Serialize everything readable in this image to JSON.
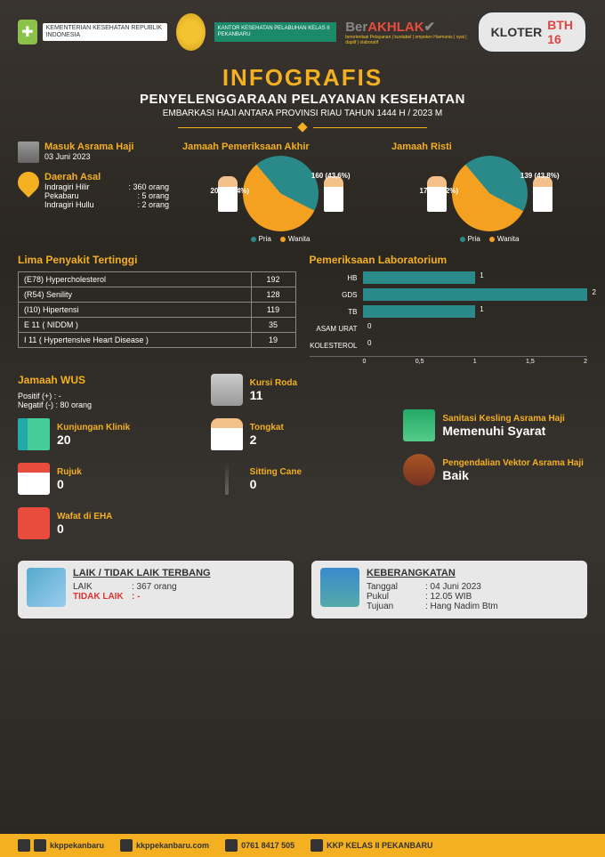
{
  "header": {
    "ministry": "KEMENTERIAN KESEHATAN REPUBLIK INDONESIA",
    "khp": "KANTOR KESEHATAN PELABUHAN KELAS II PEKANBARU",
    "berakhlak_pre": "Ber",
    "berakhlak_main": "AKHLAK",
    "berakhlak_sub": "berorientasi Pelayanan | kuntabel | ompeten Harmonis | oyal | daptif | olaboratif",
    "kloter_label": "KLOTER",
    "kloter_code": "BTH 16"
  },
  "title": {
    "main": "INFOGRAFIS",
    "sub": "PENYELENGGARAAN PELAYANAN KESEHATAN",
    "sub2": "EMBARKASI HAJI ANTARA PROVINSI RIAU TAHUN 1444 H / 2023 M"
  },
  "masuk": {
    "label": "Masuk Asrama Haji",
    "value": "03 Juni 2023"
  },
  "daerah": {
    "label": "Daerah Asal",
    "rows": [
      {
        "name": "Indragiri Hilir",
        "val": ": 360 orang"
      },
      {
        "name": "Pekabaru",
        "val": ": 5 orang"
      },
      {
        "name": "Indragiri Hullu",
        "val": ": 2 orang"
      }
    ]
  },
  "pie1": {
    "title": "Jamaah Pemeriksaan Akhir",
    "slice1_label": "207 (56,4%)",
    "slice1_pct": 56.4,
    "slice1_color": "#f4a020",
    "slice2_label": "160 (43,6%)",
    "slice2_pct": 43.6,
    "slice2_color": "#2a8a8a",
    "legend": [
      "Pria",
      "Wanita"
    ]
  },
  "pie2": {
    "title": "Jamaah Risti",
    "slice1_label": "178 (56,2%)",
    "slice1_pct": 56.2,
    "slice1_color": "#f4a020",
    "slice2_label": "139 (43,8%)",
    "slice2_pct": 43.8,
    "slice2_color": "#2a8a8a",
    "legend": [
      "Pria",
      "Wanita"
    ]
  },
  "diseases": {
    "title": "Lima Penyakit Tertinggi",
    "rows": [
      {
        "name": "(E78) Hypercholesterol",
        "val": "192"
      },
      {
        "name": "(R54) Senility",
        "val": "128"
      },
      {
        "name": "(I10) Hipertensi",
        "val": "119"
      },
      {
        "name": "E 11 ( NIDDM )",
        "val": "35"
      },
      {
        "name": "I 11 ( Hypertensive Heart Disease )",
        "val": "19"
      }
    ]
  },
  "lab": {
    "title": "Pemeriksaan Laboratorium",
    "max": 2,
    "rows": [
      {
        "label": "HB",
        "val": 1
      },
      {
        "label": "GDS",
        "val": 2
      },
      {
        "label": "TB",
        "val": 1
      },
      {
        "label": "ASAM URAT",
        "val": 0
      },
      {
        "label": "KOLESTEROL",
        "val": 0
      }
    ],
    "axis": [
      "0",
      "0,5",
      "1",
      "1,5",
      "2"
    ]
  },
  "wus": {
    "title": "Jamaah WUS",
    "pos_label": "Positif (+)",
    "pos_val": ": -",
    "neg_label": "Negatif (-)",
    "neg_val": ": 80 orang"
  },
  "stats_left": [
    {
      "label": "Kunjungan Klinik",
      "val": "20",
      "icon": "ic-city"
    },
    {
      "label": "Rujuk",
      "val": "0",
      "icon": "ic-hospital"
    },
    {
      "label": "Wafat di EHA",
      "val": "0",
      "icon": "ic-heart"
    }
  ],
  "stats_mid": [
    {
      "label": "Kursi Roda",
      "val": "11",
      "icon": "ic-wheelchair"
    },
    {
      "label": "Tongkat",
      "val": "2",
      "icon": "ic-person"
    },
    {
      "label": "Sitting Cane",
      "val": "0",
      "icon": "ic-cane"
    }
  ],
  "stats_right": [
    {
      "label": "Sanitasi Kesling Asrama Haji",
      "val": "Memenuhi Syarat",
      "icon": "ic-green-bldg"
    },
    {
      "label": "Pengendalian Vektor Asrama Haji",
      "val": "Baik",
      "icon": "ic-bug"
    }
  ],
  "laik": {
    "title": "LAIK / TIDAK LAIK TERBANG",
    "rows": [
      {
        "k": "LAIK",
        "v": ": 367 orang",
        "cls": ""
      },
      {
        "k": "TIDAK LAIK",
        "v": ": -",
        "cls": "tidak-laik"
      }
    ]
  },
  "depart": {
    "title": "KEBERANGKATAN",
    "rows": [
      {
        "k": "Tanggal",
        "v": ": 04 Juni 2023"
      },
      {
        "k": "Pukul",
        "v": ": 12.05 WIB"
      },
      {
        "k": "Tujuan",
        "v": ": Hang Nadim Btm"
      }
    ]
  },
  "footer": {
    "social": "kkppekanbaru",
    "web": "kkppekanbaru.com",
    "phone": "0761 8417 505",
    "yt": "KKP KELAS II PEKANBARU"
  },
  "colors": {
    "accent": "#f4b020",
    "teal": "#2a8a8a"
  }
}
